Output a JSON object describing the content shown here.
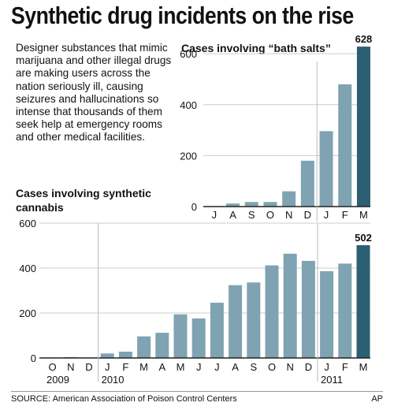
{
  "headline": "Synthetic drug incidents on the rise",
  "intro": "Designer substances that mimic marijuana and other illegal drugs are making users across the nation seriously ill, causing seizures and hallucinations so intense that thousands of them seek help at emergency rooms and other medical facilities.",
  "source": "SOURCE: American Association of Poison Control Centers",
  "credit": "AP",
  "colors": {
    "bar": "#7fa3b2",
    "bar_highlight": "#2d5f74",
    "axis": "#222222",
    "grid": "#cccccc",
    "divider": "#bbbbbb"
  },
  "chart_data": [
    {
      "type": "bar",
      "title": "Cases involving “bath salts”",
      "categories": [
        "J",
        "A",
        "S",
        "O",
        "N",
        "D",
        "J",
        "F",
        "M"
      ],
      "values": [
        0,
        12,
        18,
        18,
        60,
        180,
        296,
        480,
        628
      ],
      "ylim": [
        0,
        650
      ],
      "yticks": [
        0,
        200,
        400,
        600
      ],
      "highlight_index": 8,
      "highlight_label": "628",
      "grid": true
    },
    {
      "type": "bar",
      "title": "Cases involving synthetic cannabis",
      "categories": [
        "O",
        "N",
        "D",
        "J",
        "F",
        "M",
        "A",
        "M",
        "J",
        "J",
        "A",
        "S",
        "O",
        "N",
        "D",
        "J",
        "F",
        "M"
      ],
      "values": [
        2,
        4,
        2,
        20,
        28,
        96,
        112,
        194,
        176,
        246,
        324,
        336,
        412,
        464,
        432,
        386,
        420,
        502
      ],
      "ylim": [
        0,
        600
      ],
      "yticks": [
        0,
        200,
        400,
        600
      ],
      "highlight_index": 17,
      "highlight_label": "502",
      "year_labels": [
        {
          "label": "2009",
          "start_index": 0
        },
        {
          "label": "2010",
          "start_index": 3
        },
        {
          "label": "2011",
          "start_index": 15
        }
      ],
      "grid": true
    }
  ]
}
